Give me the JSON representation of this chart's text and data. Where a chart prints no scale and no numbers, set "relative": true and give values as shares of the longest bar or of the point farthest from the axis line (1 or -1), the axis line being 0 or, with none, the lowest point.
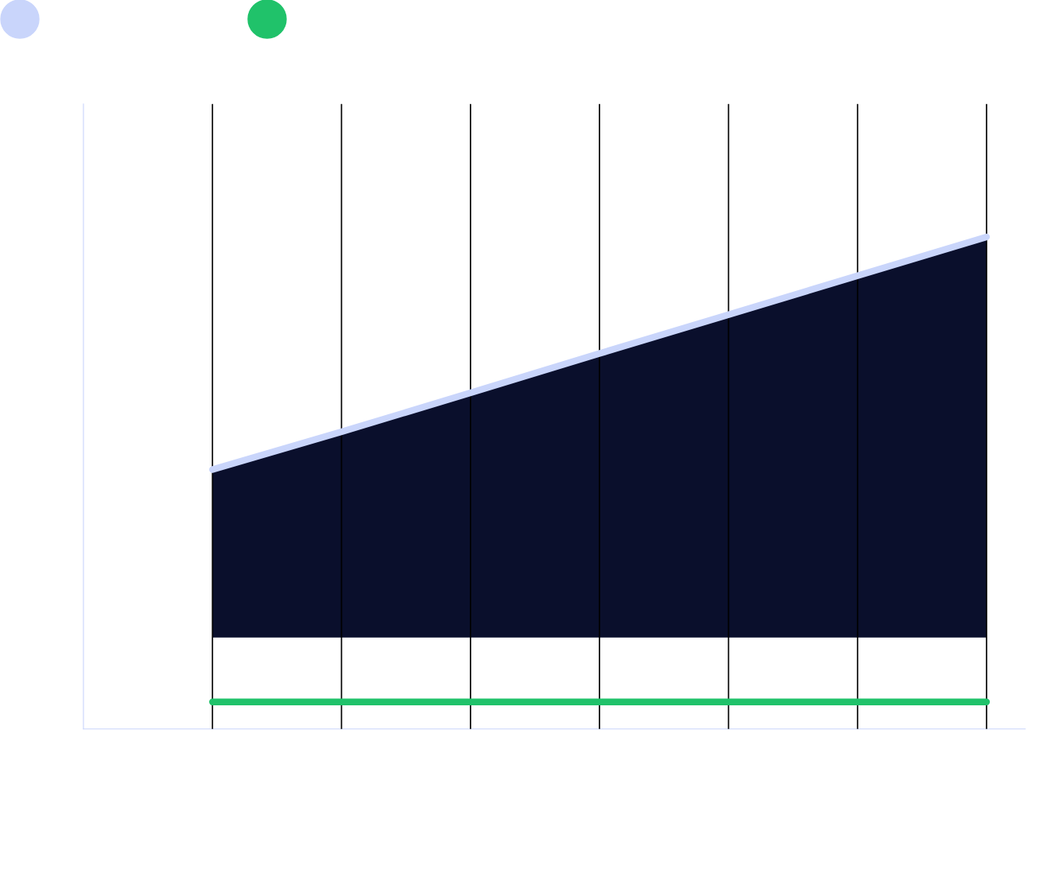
{
  "chart_data": {
    "type": "line",
    "relative": true,
    "categories": [
      null,
      null,
      null,
      null,
      null,
      null,
      null
    ],
    "series": [
      {
        "color": "#c9d5fb",
        "values": [
          0.527,
          0.604,
          0.683,
          0.763,
          0.842,
          0.921,
          1.0
        ],
        "lower": [
          0.186,
          0.186,
          0.186,
          0.186,
          0.186,
          0.186,
          0.186
        ],
        "upper": [
          0.527,
          0.604,
          0.683,
          0.763,
          0.842,
          0.921,
          1.0
        ]
      },
      {
        "color": "#20c26a",
        "values": [
          0.055,
          0.055,
          0.055,
          0.055,
          0.055,
          0.055,
          0.055
        ]
      }
    ],
    "grid": "x",
    "marker": "none",
    "line_style": "solid"
  }
}
